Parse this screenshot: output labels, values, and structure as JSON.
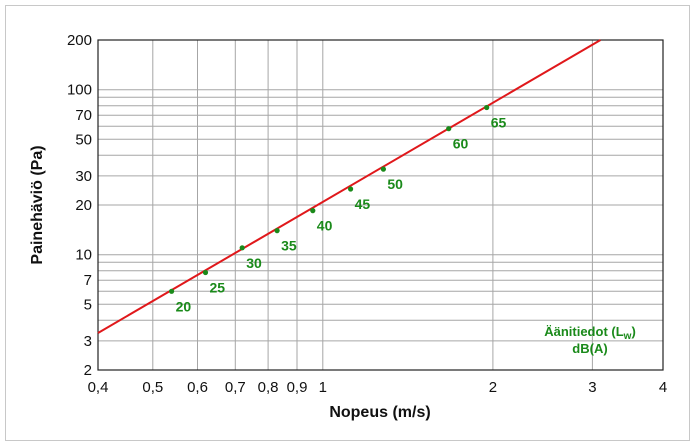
{
  "chart_data": {
    "type": "line",
    "x_scale": "log",
    "y_scale": "log",
    "xlim": [
      0.4,
      4
    ],
    "ylim": [
      2,
      200
    ],
    "xlabel": "Nopeus (m/s)",
    "ylabel": "Painehäviö (Pa)",
    "x_ticks": [
      0.4,
      0.5,
      0.6,
      0.7,
      0.8,
      0.9,
      1,
      2,
      3,
      4
    ],
    "x_tick_labels": [
      "0,4",
      "0,5",
      "0,6",
      "0,7",
      "0,8",
      "0,9",
      "1",
      "2",
      "3",
      "4"
    ],
    "y_ticks": [
      2,
      3,
      5,
      7,
      10,
      20,
      30,
      50,
      70,
      100,
      200
    ],
    "y_tick_labels": [
      "2",
      "3",
      "5",
      "7",
      "10",
      "20",
      "30",
      "50",
      "70",
      "100",
      "200"
    ],
    "y_minor_gridlines": [
      4,
      6,
      8,
      9,
      40,
      60,
      80,
      90
    ],
    "grid": true,
    "line": {
      "x": [
        0.4,
        3.1
      ],
      "y": [
        3.35,
        200
      ]
    },
    "sound_points": [
      {
        "x": 0.54,
        "y": 6,
        "label": "20"
      },
      {
        "x": 0.62,
        "y": 7.8,
        "label": "25"
      },
      {
        "x": 0.72,
        "y": 11,
        "label": "30"
      },
      {
        "x": 0.83,
        "y": 14,
        "label": "35"
      },
      {
        "x": 0.96,
        "y": 18.5,
        "label": "40"
      },
      {
        "x": 1.12,
        "y": 25,
        "label": "45"
      },
      {
        "x": 1.28,
        "y": 33,
        "label": "50"
      },
      {
        "x": 1.67,
        "y": 58,
        "label": "60"
      },
      {
        "x": 1.95,
        "y": 78,
        "label": "65"
      }
    ],
    "legend": {
      "line1_prefix": "Äänitiedot (L",
      "line1_sub": "w",
      "line1_suffix": ")",
      "line2": "dB(A)",
      "placement": "bottom-right"
    },
    "colors": {
      "line": "#e0181b",
      "points": "#1a8a1a",
      "grid": "#a6a6a6"
    }
  }
}
